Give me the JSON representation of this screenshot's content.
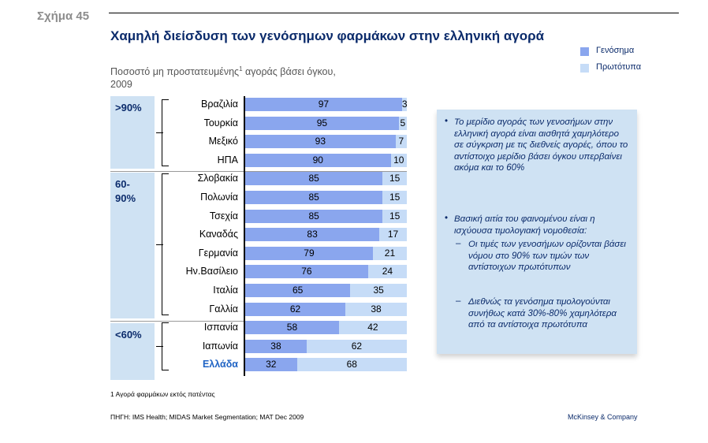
{
  "figure_label": "Σχήμα 45",
  "title": "Χαμηλή διείσδυση των γενόσημων φαρμάκων στην ελληνική αγορά",
  "subtitle": {
    "text_before": "Ποσοστό μη προστατευμένης",
    "superscript": "1",
    "text_after": " αγοράς βάσει όγκου, 2009"
  },
  "colors": {
    "generic": "#8aa6ee",
    "original": "#c6dcf7",
    "band": "#cfe2f3",
    "title": "#0b2b6b",
    "highlight": "#1f63c4"
  },
  "chart_data": {
    "type": "bar",
    "orientation": "horizontal",
    "stacked": true,
    "xlim": [
      0,
      100
    ],
    "categories": [
      "Βραζιλία",
      "Τουρκία",
      "Μεξικό",
      "ΗΠΑ",
      "Σλοβακία",
      "Πολωνία",
      "Τσεχία",
      "Καναδάς",
      "Γερμανία",
      "Ην.Βασίλειο",
      "Ιταλία",
      "Γαλλία",
      "Ισπανία",
      "Ιαπωνία",
      "Ελλάδα"
    ],
    "series": [
      {
        "name": "Γενόσημα",
        "values": [
          97,
          95,
          93,
          90,
          85,
          85,
          85,
          83,
          79,
          76,
          65,
          62,
          58,
          38,
          32
        ]
      },
      {
        "name": "Πρωτότυπα",
        "values": [
          3,
          5,
          7,
          10,
          15,
          15,
          15,
          17,
          21,
          24,
          35,
          38,
          42,
          62,
          68
        ]
      }
    ],
    "groups": [
      {
        "label": ">90%",
        "first": 0,
        "last": 3
      },
      {
        "label": "60-90%",
        "first": 4,
        "last": 11
      },
      {
        "label": "<60%",
        "first": 12,
        "last": 14
      }
    ],
    "highlight_category": "Ελλάδα",
    "legend_position": "top-right"
  },
  "callout": {
    "bullets": [
      {
        "text": "Το μερίδιο αγοράς των γενοσήμων στην ελληνική αγορά είναι αισθητά χαμηλότερο σε σύγκριση με τις διεθνείς αγορές, όπου το αντίστοιχο μερίδιο βάσει όγκου υπερβαίνει ακόμα και το 60%",
        "sub": []
      },
      {
        "text": "Βασική αιτία του φαινομένου είναι η ισχύουσα τιμολογιακή νομοθεσία:",
        "sub": [
          "Οι τιμές των γενοσήμων ορίζονται βάσει νόμου στο 90% των τιμών των αντίστοιχων πρωτότυπων",
          "Διεθνώς τα γενόσημα τιμολογούνται συνήθως κατά 30%-80% χαμηλότερα από τα αντίστοιχα πρωτότυπα"
        ]
      }
    ]
  },
  "footnote": "1 Αγορά φαρμάκων εκτός πατέντας",
  "source": "ΠΗΓΗ: IMS Health; MIDAS Market Segmentation; MAT Dec 2009",
  "brand": "McKinsey & Company"
}
